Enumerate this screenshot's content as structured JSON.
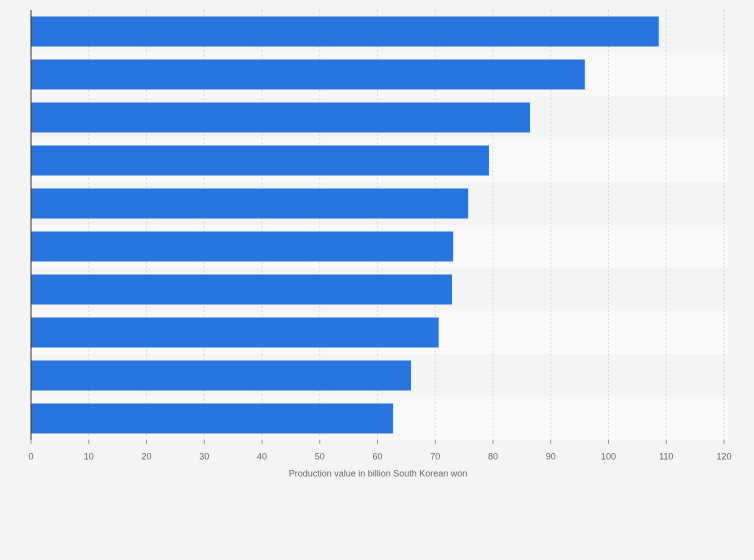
{
  "chart_data": {
    "type": "hbar",
    "categories": [
      null,
      null,
      null,
      null,
      null,
      null,
      null,
      null,
      null,
      null
    ],
    "values": [
      108.7,
      95.9,
      86.4,
      79.3,
      75.7,
      73.1,
      72.9,
      70.6,
      65.8,
      62.7
    ],
    "color": "#2876dd",
    "x_label": "Production value in billion South Korean won",
    "xlim": [
      0,
      120
    ],
    "xticks": [
      0,
      10,
      20,
      30,
      40,
      50,
      60,
      70,
      80,
      90,
      100,
      110,
      120
    ],
    "grid": true
  }
}
